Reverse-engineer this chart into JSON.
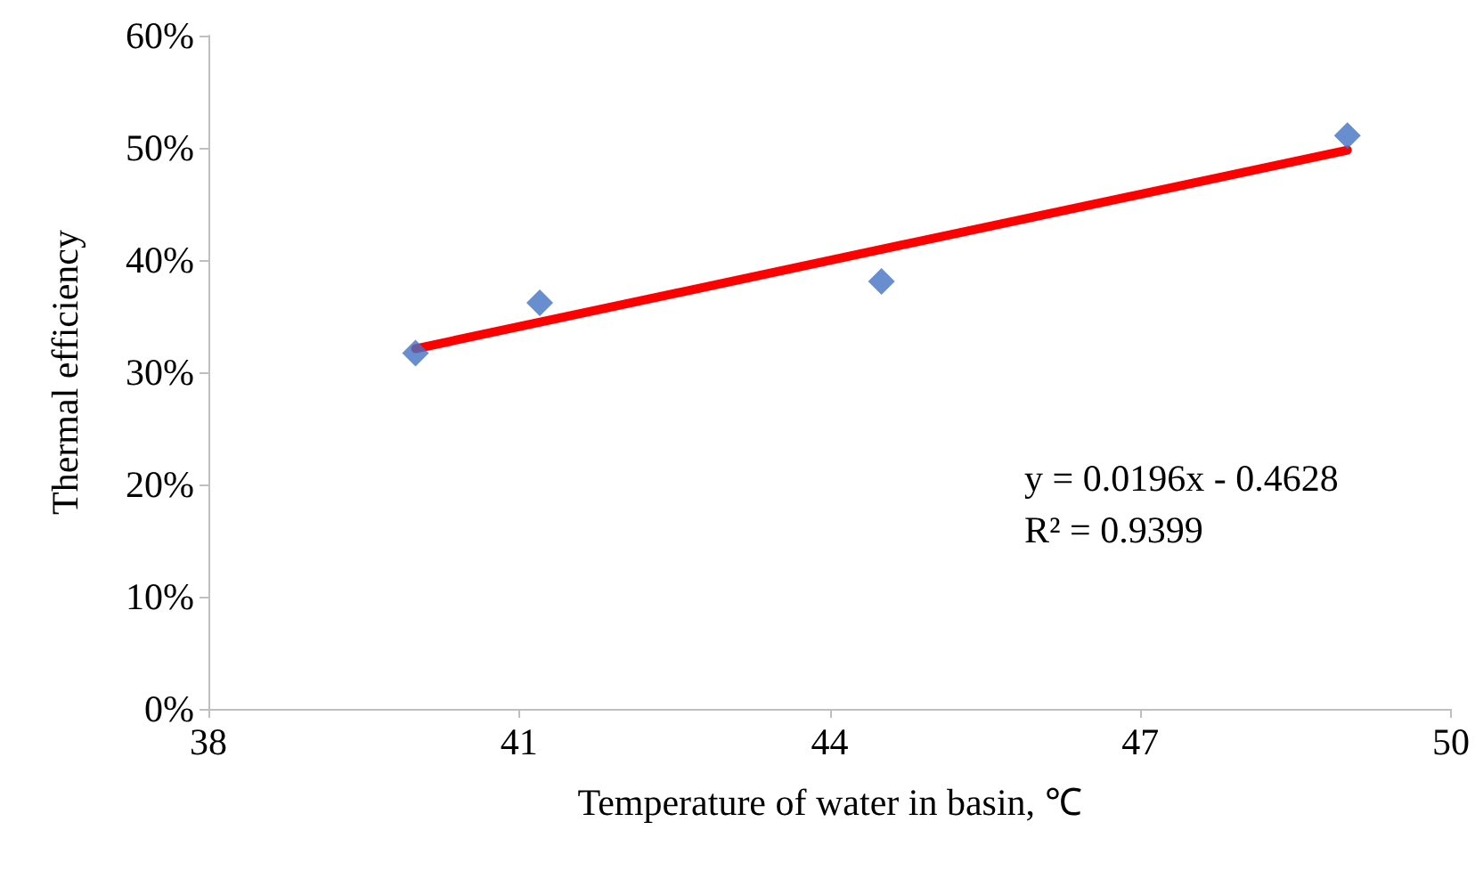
{
  "chart_data": {
    "type": "scatter",
    "xlabel": "Temperature of water in basin, ℃",
    "ylabel": "Thermal efficiency",
    "grid": false,
    "series": [
      {
        "color": "#4472c4",
        "marker": "diamond",
        "x": [
          40.0,
          41.2,
          44.5,
          49.0
        ],
        "values": [
          31.7,
          36.2,
          38.1,
          51.1
        ]
      },
      {
        "type": "line",
        "color": "#ff0000",
        "line_style": "solid",
        "marker": "none",
        "x": [
          40,
          49
        ],
        "values": [
          32.1,
          49.8
        ]
      }
    ],
    "xlim": [
      38,
      50
    ],
    "xticks": [
      38,
      41,
      44,
      47,
      50
    ],
    "ylim": [
      0,
      60
    ],
    "yticks": [
      {
        "value": 0,
        "label": "0%"
      },
      {
        "value": 10,
        "label": "10%"
      },
      {
        "value": 20,
        "label": "20%"
      },
      {
        "value": 30,
        "label": "30%"
      },
      {
        "value": 40,
        "label": "40%"
      },
      {
        "value": 50,
        "label": "50%"
      },
      {
        "value": 60,
        "label": "60%"
      }
    ],
    "annotations": [
      "y = 0.0196x - 0.4628",
      "R² = 0.9399"
    ]
  }
}
